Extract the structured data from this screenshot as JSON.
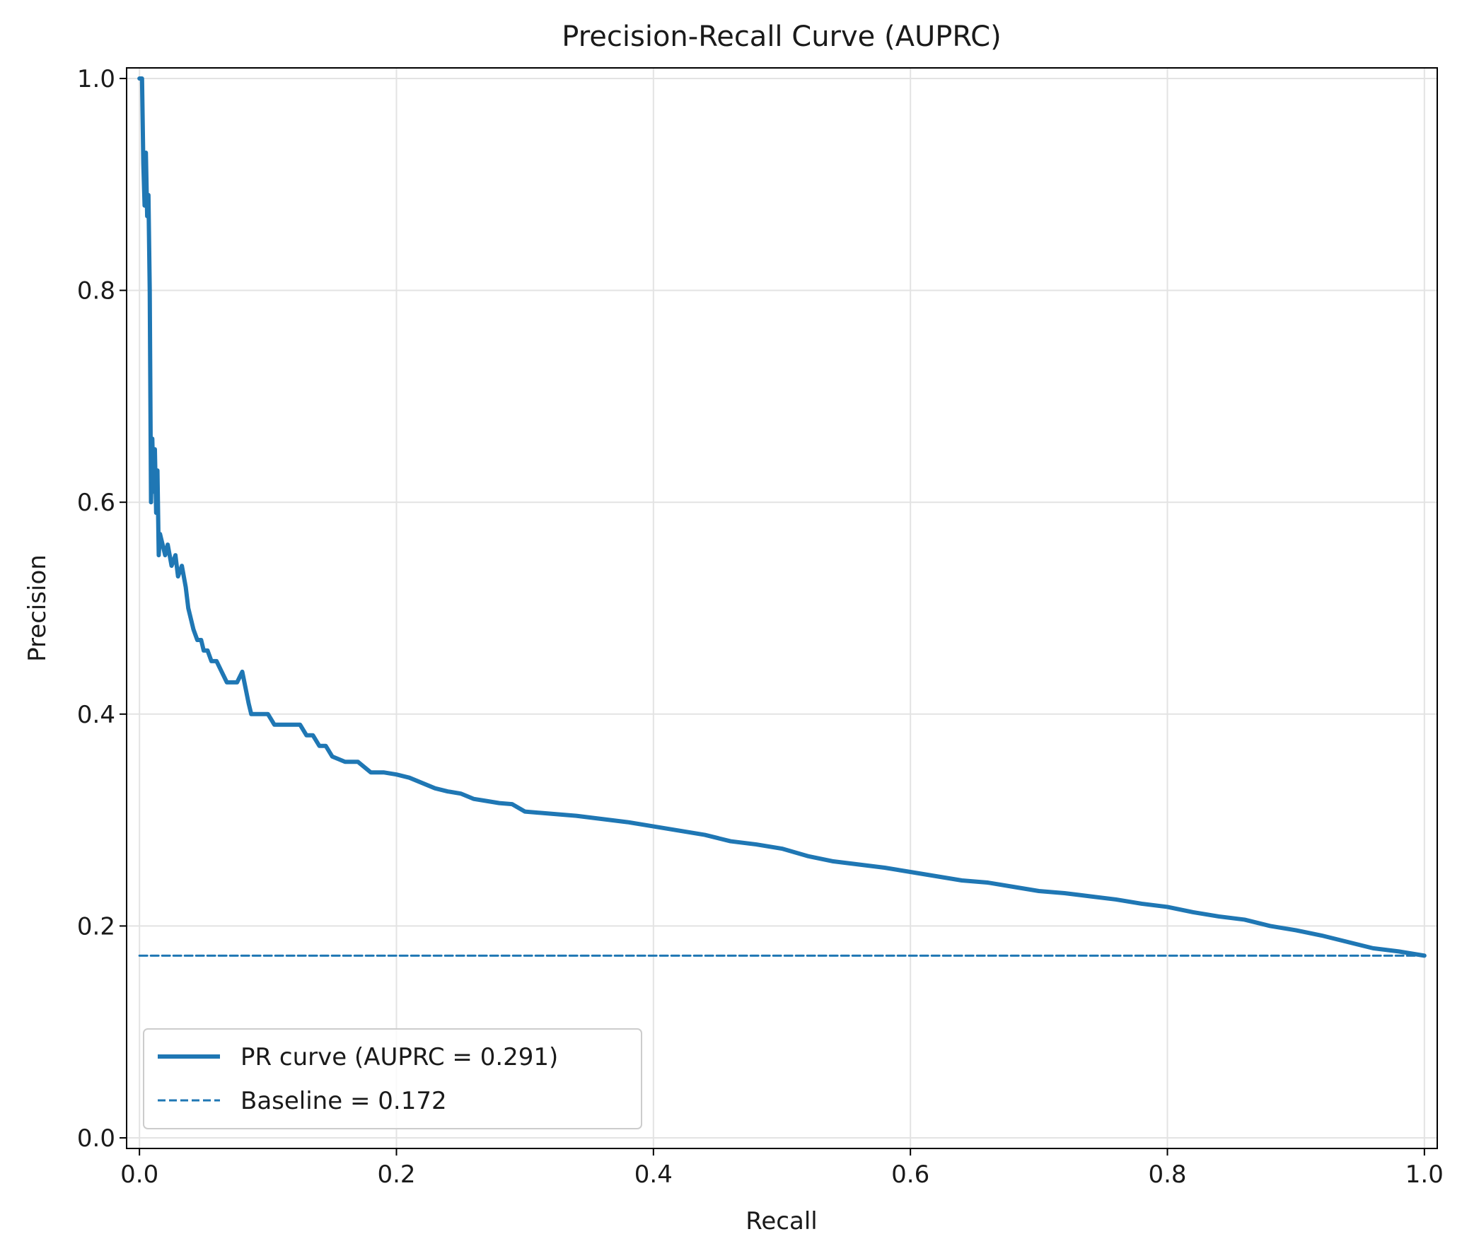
{
  "chart_data": {
    "type": "line",
    "title": "Precision-Recall Curve (AUPRC)",
    "xlabel": "Recall",
    "ylabel": "Precision",
    "xlim": [
      -0.01,
      1.01
    ],
    "ylim": [
      -0.01,
      1.01
    ],
    "xticks": [
      0.0,
      0.2,
      0.4,
      0.6,
      0.8,
      1.0
    ],
    "xtick_labels": [
      "0.0",
      "0.2",
      "0.4",
      "0.6",
      "0.8",
      "1.0"
    ],
    "yticks": [
      0.0,
      0.2,
      0.4,
      0.6,
      0.8,
      1.0
    ],
    "ytick_labels": [
      "0.0",
      "0.2",
      "0.4",
      "0.6",
      "0.8",
      "1.0"
    ],
    "grid": true,
    "legend_position": "lower-left",
    "series": [
      {
        "name": "PR curve (AUPRC = 0.291)",
        "color": "#1f77b4",
        "style": "solid",
        "x": [
          0.0,
          0.002,
          0.003,
          0.004,
          0.005,
          0.006,
          0.007,
          0.008,
          0.009,
          0.01,
          0.011,
          0.012,
          0.013,
          0.014,
          0.015,
          0.016,
          0.018,
          0.02,
          0.022,
          0.025,
          0.028,
          0.03,
          0.033,
          0.036,
          0.038,
          0.04,
          0.042,
          0.045,
          0.048,
          0.05,
          0.053,
          0.056,
          0.06,
          0.064,
          0.068,
          0.072,
          0.076,
          0.08,
          0.085,
          0.087,
          0.09,
          0.095,
          0.1,
          0.105,
          0.11,
          0.115,
          0.12,
          0.125,
          0.13,
          0.135,
          0.14,
          0.145,
          0.15,
          0.16,
          0.17,
          0.18,
          0.19,
          0.2,
          0.21,
          0.22,
          0.23,
          0.24,
          0.25,
          0.26,
          0.27,
          0.28,
          0.29,
          0.3,
          0.32,
          0.34,
          0.36,
          0.38,
          0.4,
          0.42,
          0.44,
          0.46,
          0.48,
          0.5,
          0.52,
          0.54,
          0.56,
          0.58,
          0.6,
          0.62,
          0.64,
          0.66,
          0.68,
          0.7,
          0.72,
          0.74,
          0.76,
          0.78,
          0.8,
          0.82,
          0.84,
          0.86,
          0.88,
          0.9,
          0.92,
          0.94,
          0.96,
          0.98,
          1.0
        ],
        "y": [
          1.0,
          1.0,
          0.92,
          0.88,
          0.93,
          0.87,
          0.89,
          0.8,
          0.6,
          0.66,
          0.61,
          0.65,
          0.59,
          0.63,
          0.55,
          0.57,
          0.56,
          0.55,
          0.56,
          0.54,
          0.55,
          0.53,
          0.54,
          0.52,
          0.5,
          0.49,
          0.48,
          0.47,
          0.47,
          0.46,
          0.46,
          0.45,
          0.45,
          0.44,
          0.43,
          0.43,
          0.43,
          0.44,
          0.41,
          0.4,
          0.4,
          0.4,
          0.4,
          0.39,
          0.39,
          0.39,
          0.39,
          0.39,
          0.38,
          0.38,
          0.37,
          0.37,
          0.36,
          0.355,
          0.355,
          0.345,
          0.345,
          0.343,
          0.34,
          0.335,
          0.33,
          0.327,
          0.325,
          0.32,
          0.318,
          0.316,
          0.315,
          0.308,
          0.306,
          0.304,
          0.301,
          0.298,
          0.294,
          0.29,
          0.286,
          0.28,
          0.277,
          0.273,
          0.266,
          0.261,
          0.258,
          0.255,
          0.251,
          0.247,
          0.243,
          0.241,
          0.237,
          0.233,
          0.231,
          0.228,
          0.225,
          0.221,
          0.218,
          0.213,
          0.209,
          0.206,
          0.2,
          0.196,
          0.191,
          0.185,
          0.179,
          0.176,
          0.172
        ]
      },
      {
        "name": "Baseline = 0.172",
        "color": "#1f77b4",
        "style": "dashed",
        "x": [
          0.0,
          1.0
        ],
        "y": [
          0.172,
          0.172
        ]
      }
    ]
  }
}
